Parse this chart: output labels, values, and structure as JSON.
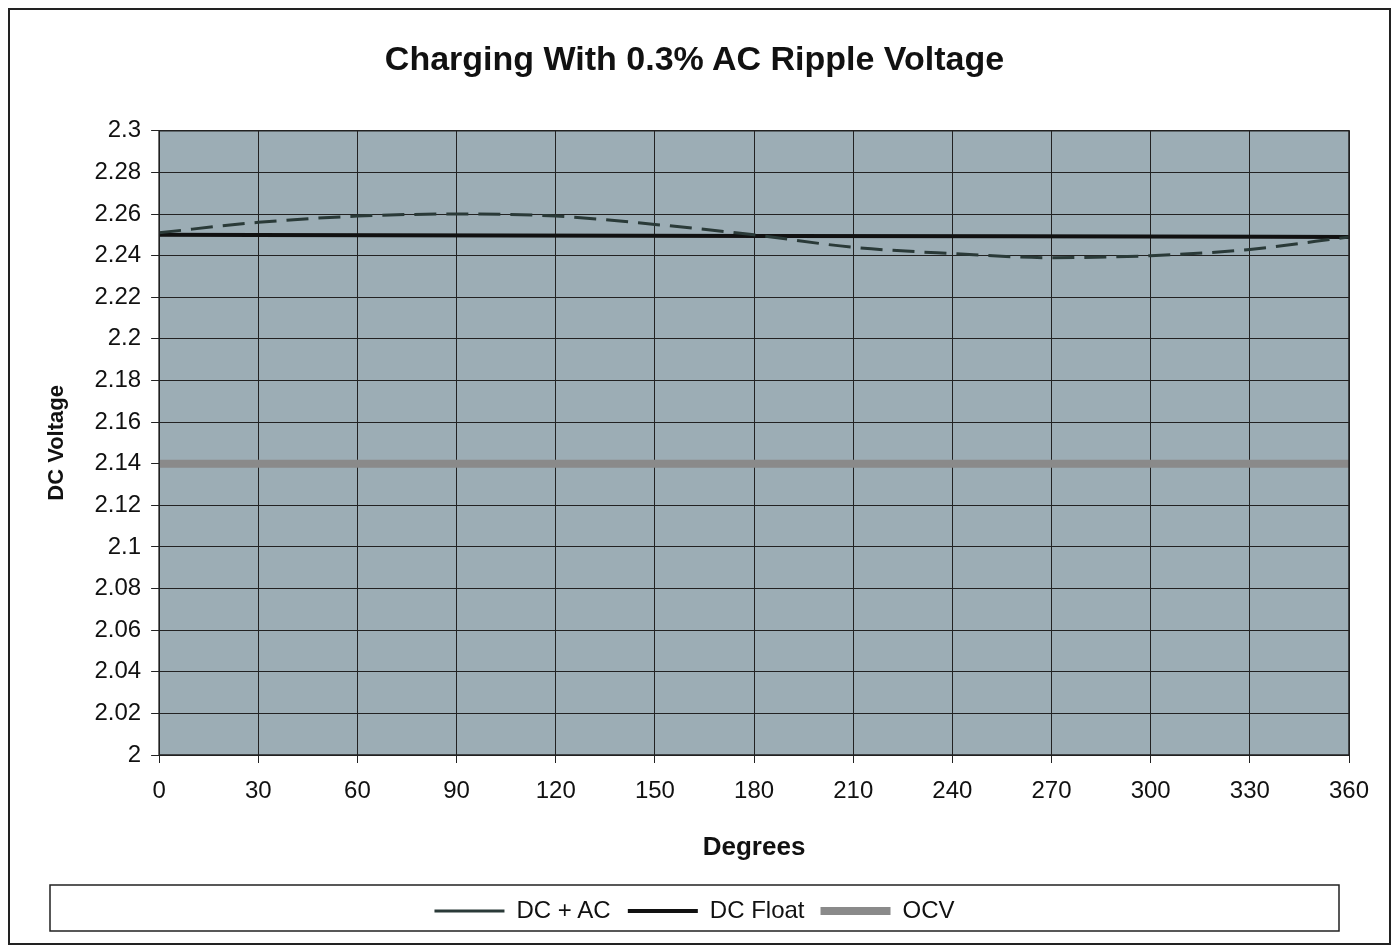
{
  "chart_data": {
    "type": "line",
    "title": "Charging With 0.3% AC Ripple Voltage",
    "xlabel": "Degrees",
    "ylabel": "DC Voltage",
    "xlim": [
      0,
      360
    ],
    "xticks": [
      0,
      30,
      60,
      90,
      120,
      150,
      180,
      210,
      240,
      270,
      300,
      330,
      360
    ],
    "ylim": [
      2,
      2.3
    ],
    "yticks": [
      2,
      2.02,
      2.04,
      2.06,
      2.08,
      2.1,
      2.12,
      2.14,
      2.16,
      2.18,
      2.2,
      2.22,
      2.24,
      2.26,
      2.28,
      2.3
    ],
    "grid": true,
    "legend": "bottom",
    "marker": "none",
    "series": [
      {
        "name": "DC + AC",
        "color": "#2a3a38",
        "line_style": "dashed",
        "x": [
          0,
          30,
          60,
          90,
          120,
          150,
          180,
          210,
          240,
          270,
          300,
          330,
          360
        ],
        "values": [
          2.251,
          2.256,
          2.259,
          2.26,
          2.259,
          2.255,
          2.25,
          2.244,
          2.241,
          2.239,
          2.24,
          2.243,
          2.249
        ]
      },
      {
        "name": "DC Float",
        "color": "#111111",
        "line_style": "solid",
        "x": [
          0,
          360
        ],
        "values": [
          2.25,
          2.249
        ]
      },
      {
        "name": "OCV",
        "color": "#8a8a8a",
        "line_style": "solid",
        "x": [
          0,
          360
        ],
        "values": [
          2.14,
          2.14
        ]
      }
    ]
  }
}
